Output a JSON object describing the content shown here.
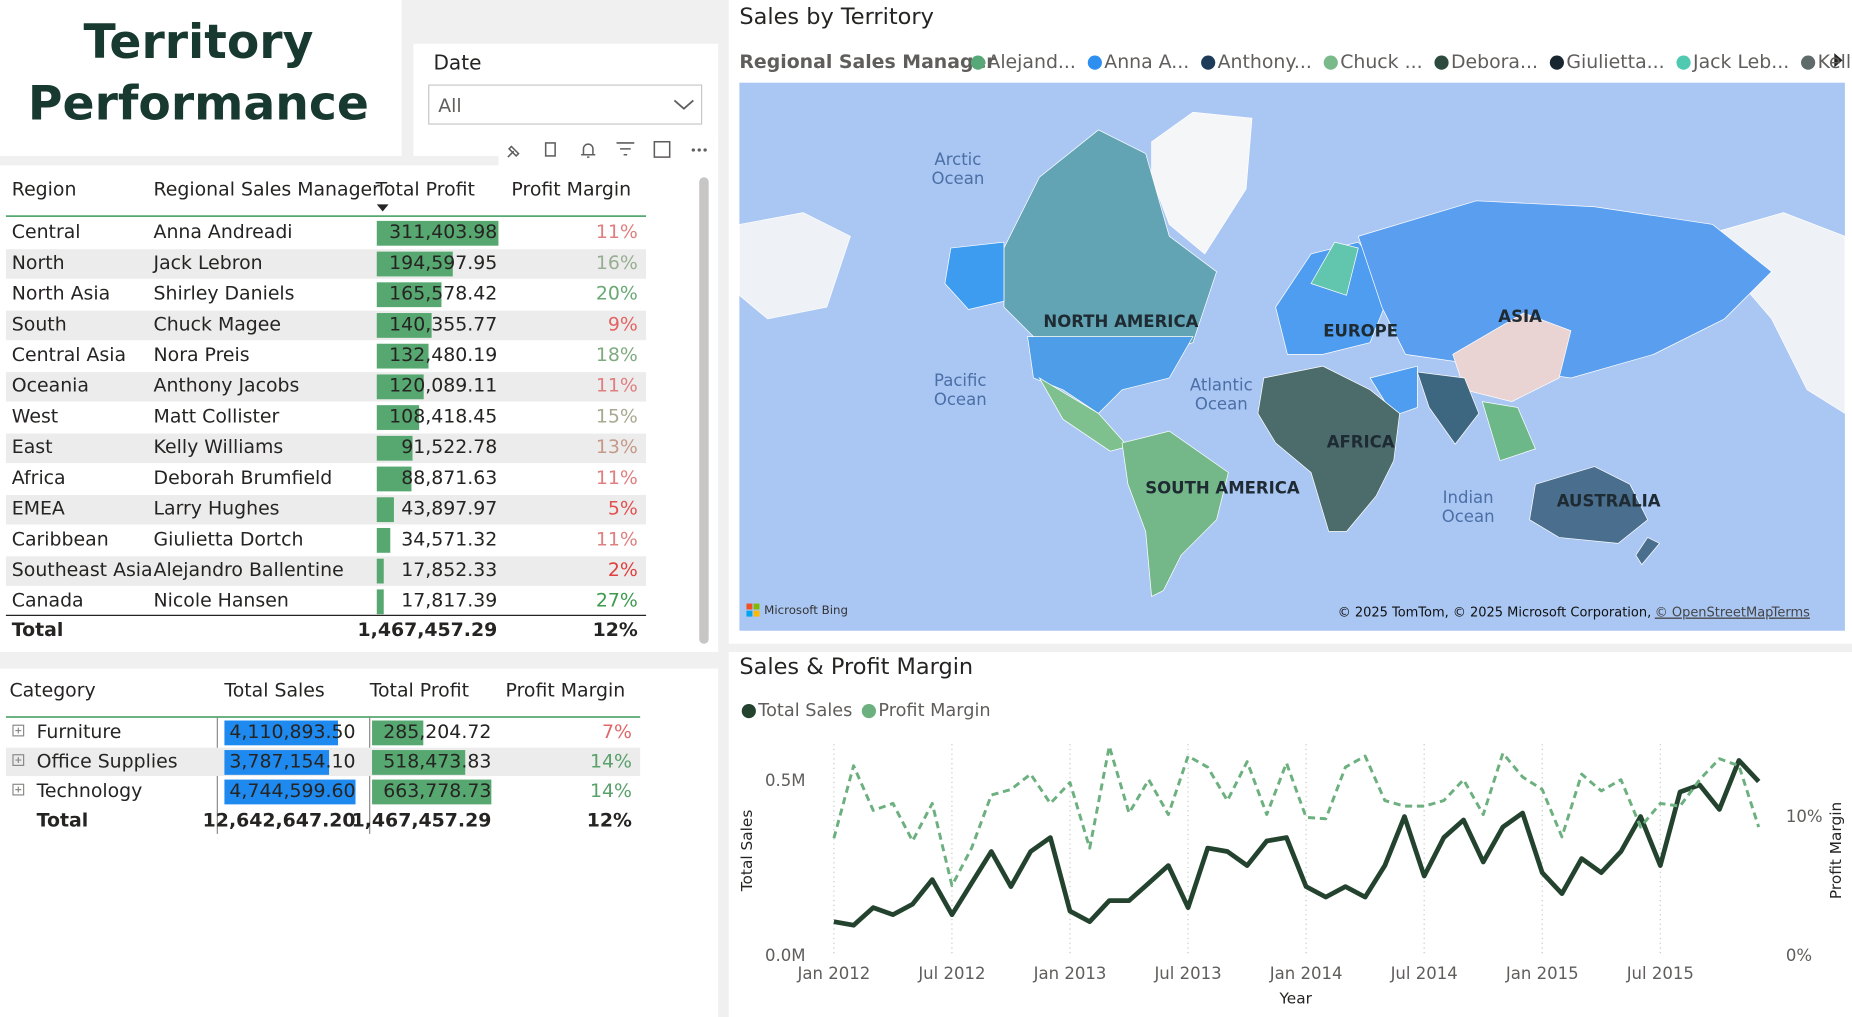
{
  "header": {
    "title_lines": [
      "Territory",
      "Performance"
    ]
  },
  "filter": {
    "label": "Date",
    "value": "All"
  },
  "region_table": {
    "columns": [
      "Region",
      "Regional Sales Manager",
      "Total Profit",
      "Profit Margin"
    ],
    "bar_color": "#57a870",
    "rows": [
      {
        "region": "Central",
        "manager": "Anna Andreadi",
        "profit": 311403.98,
        "profit_label": "311,403.98",
        "margin": "11%",
        "margin_color": "#df7f7f"
      },
      {
        "region": "North",
        "manager": "Jack Lebron",
        "profit": 194597.95,
        "profit_label": "194,597.95",
        "margin": "16%",
        "margin_color": "#98ae92"
      },
      {
        "region": "North Asia",
        "manager": "Shirley Daniels",
        "profit": 165578.42,
        "profit_label": "165,578.42",
        "margin": "20%",
        "margin_color": "#6aa874"
      },
      {
        "region": "South",
        "manager": "Chuck Magee",
        "profit": 140355.77,
        "profit_label": "140,355.77",
        "margin": "9%",
        "margin_color": "#e36464"
      },
      {
        "region": "Central Asia",
        "manager": "Nora Preis",
        "profit": 132480.19,
        "profit_label": "132,480.19",
        "margin": "18%",
        "margin_color": "#7fab80"
      },
      {
        "region": "Oceania",
        "manager": "Anthony Jacobs",
        "profit": 120089.11,
        "profit_label": "120,089.11",
        "margin": "11%",
        "margin_color": "#df7f7f"
      },
      {
        "region": "West",
        "manager": "Matt Collister",
        "profit": 108418.45,
        "profit_label": "108,418.45",
        "margin": "15%",
        "margin_color": "#a8aa90"
      },
      {
        "region": "East",
        "manager": "Kelly Williams",
        "profit": 91522.78,
        "profit_label": "91,522.78",
        "margin": "13%",
        "margin_color": "#c49a8a"
      },
      {
        "region": "Africa",
        "manager": "Deborah Brumfield",
        "profit": 88871.63,
        "profit_label": "88,871.63",
        "margin": "11%",
        "margin_color": "#df7f7f"
      },
      {
        "region": "EMEA",
        "manager": "Larry Hughes",
        "profit": 43897.97,
        "profit_label": "43,897.97",
        "margin": "5%",
        "margin_color": "#e35050"
      },
      {
        "region": "Caribbean",
        "manager": "Giulietta Dortch",
        "profit": 34571.32,
        "profit_label": "34,571.32",
        "margin": "11%",
        "margin_color": "#df7f7f"
      },
      {
        "region": "Southeast Asia",
        "manager": "Alejandro Ballentine",
        "profit": 17852.33,
        "profit_label": "17,852.33",
        "margin": "2%",
        "margin_color": "#e04040"
      },
      {
        "region": "Canada",
        "manager": "Nicole Hansen",
        "profit": 17817.39,
        "profit_label": "17,817.39",
        "margin": "27%",
        "margin_color": "#3d9a4c"
      }
    ],
    "total": {
      "label": "Total",
      "profit": "1,467,457.29",
      "margin": "12%"
    }
  },
  "category_table": {
    "columns": [
      "Category",
      "Total Sales",
      "Total Profit",
      "Profit Margin"
    ],
    "sales_bar_color": "#1e8af0",
    "profit_bar_color": "#57a870",
    "rows": [
      {
        "category": "Furniture",
        "sales": 4110893.5,
        "sales_label": "4,110,893.50",
        "profit": 285204.72,
        "profit_label": "285,204.72",
        "margin": "7%",
        "margin_color": "#e06868"
      },
      {
        "category": "Office Supplies",
        "sales": 3787154.1,
        "sales_label": "3,787,154.10",
        "profit": 518473.83,
        "profit_label": "518,473.83",
        "margin": "14%",
        "margin_color": "#5aa06a"
      },
      {
        "category": "Technology",
        "sales": 4744599.6,
        "sales_label": "4,744,599.60",
        "profit": 663778.73,
        "profit_label": "663,778.73",
        "margin": "14%",
        "margin_color": "#5aa06a"
      }
    ],
    "total": {
      "label": "Total",
      "sales": "12,642,647.20",
      "profit": "1,467,457.29",
      "margin": "12%"
    }
  },
  "map": {
    "title": "Sales by Territory",
    "legend_title": "Regional Sales Manager",
    "legend": [
      {
        "name": "Alejand...",
        "color": "#56a876"
      },
      {
        "name": "Anna A...",
        "color": "#2e8ff0"
      },
      {
        "name": "Anthony...",
        "color": "#1f3b5a"
      },
      {
        "name": "Chuck ...",
        "color": "#7ab98a"
      },
      {
        "name": "Debora...",
        "color": "#2c4a3e"
      },
      {
        "name": "Giulietta...",
        "color": "#18262f"
      },
      {
        "name": "Jack Leb...",
        "color": "#4fc9b0"
      },
      {
        "name": "Kelly Wil...",
        "color": "#5f6b6b"
      }
    ],
    "oceans": [
      [
        "Arctic",
        "Ocean"
      ],
      [
        "Pacific",
        "Ocean"
      ],
      [
        "Atlantic",
        "Ocean"
      ],
      [
        "Indian",
        "Ocean"
      ]
    ],
    "continents": [
      "NORTH AMERICA",
      "EUROPE",
      "ASIA",
      "AFRICA",
      "SOUTH AMERICA",
      "AUSTRALIA"
    ],
    "brand": "Microsoft Bing",
    "attribution": "© 2025 TomTom, © 2025 Microsoft Corporation,",
    "osm": "© OpenStreetMap",
    "terms": "Terms"
  },
  "chart_data": {
    "type": "line",
    "title": "Sales & Profit Margin",
    "x_label": "Year",
    "y_label": "Total Sales",
    "y2_label": "Profit Margin",
    "x": [
      "2012-01",
      "2012-02",
      "2012-03",
      "2012-04",
      "2012-05",
      "2012-06",
      "2012-07",
      "2012-08",
      "2012-09",
      "2012-10",
      "2012-11",
      "2012-12",
      "2013-01",
      "2013-02",
      "2013-03",
      "2013-04",
      "2013-05",
      "2013-06",
      "2013-07",
      "2013-08",
      "2013-09",
      "2013-10",
      "2013-11",
      "2013-12",
      "2014-01",
      "2014-02",
      "2014-03",
      "2014-04",
      "2014-05",
      "2014-06",
      "2014-07",
      "2014-08",
      "2014-09",
      "2014-10",
      "2014-11",
      "2014-12",
      "2015-01",
      "2015-02",
      "2015-03",
      "2015-04",
      "2015-05",
      "2015-06",
      "2015-07",
      "2015-08",
      "2015-09",
      "2015-10",
      "2015-11",
      "2015-12"
    ],
    "xlim": [
      "2012-01",
      "2015-12"
    ],
    "xticks": [
      {
        "value": "2012-01",
        "label": "Jan 2012"
      },
      {
        "value": "2012-07",
        "label": "Jul 2012"
      },
      {
        "value": "2013-01",
        "label": "Jan 2013"
      },
      {
        "value": "2013-07",
        "label": "Jul 2013"
      },
      {
        "value": "2014-01",
        "label": "Jan 2014"
      },
      {
        "value": "2014-07",
        "label": "Jul 2014"
      },
      {
        "value": "2015-01",
        "label": "Jan 2015"
      },
      {
        "value": "2015-07",
        "label": "Jul 2015"
      }
    ],
    "ylim": [
      0,
      640000
    ],
    "yticks": [
      {
        "value": 0,
        "label": "0.0M"
      },
      {
        "value": 500000,
        "label": "0.5M"
      }
    ],
    "y2lim": [
      0,
      16.1
    ],
    "y2ticks": [
      {
        "value": 0,
        "label": "0%"
      },
      {
        "value": 10,
        "label": "10%"
      }
    ],
    "grid": true,
    "series": [
      {
        "name": "Total Sales",
        "color": "#23432f",
        "values": [
          100000,
          90000,
          140000,
          120000,
          150000,
          220000,
          120000,
          210000,
          300000,
          200000,
          300000,
          340000,
          130000,
          100000,
          160000,
          160000,
          210000,
          260000,
          140000,
          310000,
          300000,
          260000,
          330000,
          340000,
          200000,
          170000,
          200000,
          170000,
          260000,
          400000,
          230000,
          340000,
          390000,
          270000,
          370000,
          410000,
          240000,
          180000,
          280000,
          240000,
          300000,
          400000,
          260000,
          470000,
          490000,
          420000,
          560000,
          500000
        ]
      },
      {
        "name": "Profit Margin",
        "color": "#6db07f",
        "axis": "y2",
        "dashed": true,
        "values": [
          8.5,
          13.7,
          10.5,
          11.0,
          8.3,
          11.0,
          5.1,
          7.8,
          11.6,
          12.0,
          13.1,
          11.0,
          12.5,
          7.8,
          15.1,
          10.3,
          12.7,
          10.2,
          14.4,
          13.6,
          11.2,
          14.0,
          10.2,
          13.9,
          10.0,
          9.9,
          13.6,
          14.4,
          11.2,
          10.8,
          10.8,
          11.2,
          12.7,
          10.2,
          14.6,
          12.9,
          12.0,
          8.6,
          13.1,
          11.9,
          12.7,
          9.3,
          11.0,
          10.8,
          12.7,
          14.2,
          13.7,
          9.3
        ]
      }
    ]
  }
}
